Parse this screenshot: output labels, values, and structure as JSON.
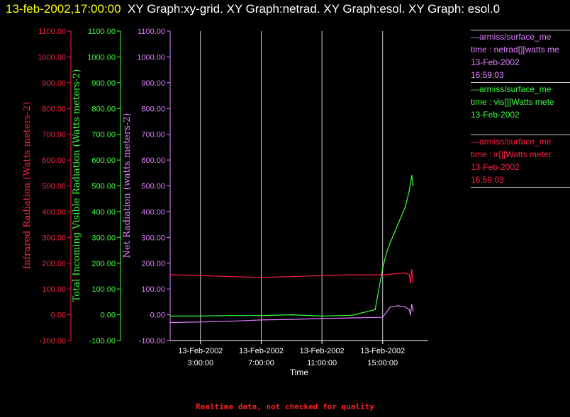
{
  "header": {
    "timestamp": "13-feb-2002,17:00:00",
    "title": "XY Graph:xy-grid.  XY Graph:netrad.  XY Graph:esol.  XY Graph: esol.0"
  },
  "footer": {
    "notice": "Realtime data, not checked for quality"
  },
  "colors": {
    "infrared": "#ff2040",
    "visible": "#40ff40",
    "net": "#e080ff",
    "background": "#000000",
    "text": "#ffffff"
  },
  "legend": [
    {
      "lines": [
        "—armiss/surface_me",
        "time : netrad[][watts me",
        "13-Feb-2002",
        "16:59:03"
      ],
      "color": "#e080ff"
    },
    {
      "lines": [
        "—armiss/surface_me",
        "time : vis[][Watts mete",
        "13-Feb-2002"
      ],
      "color": "#40ff40"
    },
    {
      "lines": [
        "—armiss/surface_me",
        "time : ir[][Watts meter",
        "13-Feb-2002",
        "16:59:03"
      ],
      "color": "#ff2040"
    }
  ],
  "chart_data": {
    "type": "line",
    "xlabel": "Time",
    "x_ticks": [
      {
        "date": "13-Feb-2002",
        "time": "3:00:00",
        "hour": 3
      },
      {
        "date": "13-Feb-2002",
        "time": "7:00:00",
        "hour": 7
      },
      {
        "date": "13-Feb-2002",
        "time": "11:00:00",
        "hour": 11
      },
      {
        "date": "13-Feb-2002",
        "time": "15:00:00",
        "hour": 15
      }
    ],
    "xlim": [
      "13-Feb-2002 1:00:00",
      "13-Feb-2002 18:00:00"
    ],
    "ylim": [
      -100,
      1100
    ],
    "y_ticks": [
      "-100.00",
      "0.00",
      "100.00",
      "200.00",
      "300.00",
      "400.00",
      "500.00",
      "600.00",
      "700.00",
      "800.00",
      "900.00",
      "1000.00",
      "1100.00"
    ],
    "axes": [
      {
        "label": "Infrared Radiation (Watts meters-2)",
        "color": "#ff2040"
      },
      {
        "label": "Total Incoming Visible Radiation (Watts meters-2)",
        "color": "#40ff40"
      },
      {
        "label": "Net Radiation (watts meters-2)",
        "color": "#e080ff"
      }
    ],
    "vertical_grid": true,
    "series": [
      {
        "color": "#ff2040",
        "x": [
          "13-Feb-2002 1:00",
          "13-Feb-2002 3:00",
          "13-Feb-2002 5:00",
          "13-Feb-2002 7:00",
          "13-Feb-2002 9:00",
          "13-Feb-2002 11:00",
          "13-Feb-2002 13:00",
          "13-Feb-2002 15:00",
          "13-Feb-2002 16:00",
          "13-Feb-2002 16:30",
          "13-Feb-2002 16:45",
          "13-Feb-2002 16:50",
          "13-Feb-2002 16:55",
          "13-Feb-2002 17:00"
        ],
        "values": [
          155,
          152,
          148,
          145,
          148,
          152,
          155,
          155,
          160,
          162,
          155,
          125,
          175,
          125
        ]
      },
      {
        "color": "#40ff40",
        "x": [
          "13-Feb-2002 1:00",
          "13-Feb-2002 3:00",
          "13-Feb-2002 5:00",
          "13-Feb-2002 7:00",
          "13-Feb-2002 9:00",
          "13-Feb-2002 11:00",
          "13-Feb-2002 13:00",
          "13-Feb-2002 14:30",
          "13-Feb-2002 15:00",
          "13-Feb-2002 15:15",
          "13-Feb-2002 15:30",
          "13-Feb-2002 16:00",
          "13-Feb-2002 16:30",
          "13-Feb-2002 16:45",
          "13-Feb-2002 16:55",
          "13-Feb-2002 17:00"
        ],
        "values": [
          -5,
          -5,
          -3,
          -3,
          0,
          -5,
          -2,
          20,
          180,
          240,
          280,
          350,
          420,
          480,
          540,
          500
        ]
      },
      {
        "color": "#e080ff",
        "x": [
          "13-Feb-2002 1:00",
          "13-Feb-2002 3:00",
          "13-Feb-2002 5:00",
          "13-Feb-2002 7:00",
          "13-Feb-2002 9:00",
          "13-Feb-2002 11:00",
          "13-Feb-2002 13:00",
          "13-Feb-2002 15:00",
          "13-Feb-2002 15:30",
          "13-Feb-2002 16:00",
          "13-Feb-2002 16:30",
          "13-Feb-2002 16:45",
          "13-Feb-2002 16:50",
          "13-Feb-2002 16:55",
          "13-Feb-2002 17:00"
        ],
        "values": [
          -30,
          -28,
          -25,
          -20,
          -18,
          -15,
          -12,
          -10,
          30,
          35,
          30,
          20,
          0,
          40,
          15
        ]
      }
    ]
  }
}
